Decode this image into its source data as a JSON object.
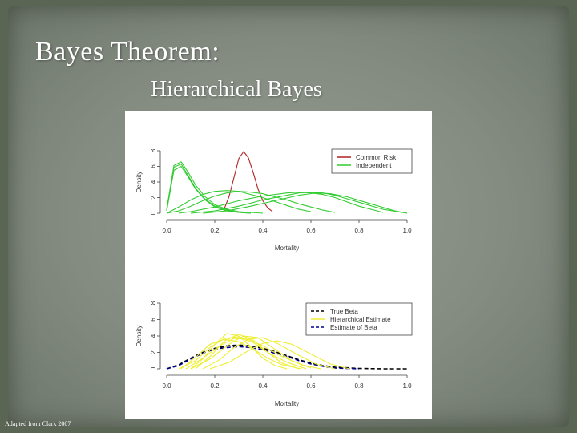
{
  "slide": {
    "title": "Bayes Theorem:",
    "subtitle": "Hierarchical Bayes",
    "credit": "Adapted from Clark 2007"
  },
  "chart_data": [
    {
      "type": "line",
      "xlabel": "Mortality",
      "ylabel": "Density",
      "xlim": [
        0,
        1
      ],
      "ylim": [
        0,
        8
      ],
      "xticks": [
        "0.0",
        "0.2",
        "0.4",
        "0.6",
        "0.8",
        "1.0"
      ],
      "yticks": [
        "0",
        "2",
        "4",
        "6",
        "8"
      ],
      "grid": false,
      "legend": "top-right",
      "legend_entries": [
        {
          "label": "Common Risk",
          "color": "#b22222",
          "dash": "solid"
        },
        {
          "label": "Independent",
          "color": "#33cc33",
          "dash": "solid"
        }
      ],
      "series": [
        {
          "name": "Common Risk",
          "color": "#b22222",
          "x": [
            0.24,
            0.26,
            0.28,
            0.3,
            0.32,
            0.34,
            0.36,
            0.38,
            0.4,
            0.42,
            0.44
          ],
          "y": [
            0.6,
            2.2,
            4.6,
            7.0,
            7.9,
            7.1,
            5.2,
            3.1,
            1.6,
            0.7,
            0.2
          ]
        },
        {
          "name": "Independent",
          "color": "#33cc33",
          "x": [
            0.0,
            0.03,
            0.06,
            0.09,
            0.12,
            0.16,
            0.2,
            0.25,
            0.3,
            0.35,
            0.4
          ],
          "y": [
            0.5,
            6.1,
            6.6,
            5.2,
            3.6,
            2.1,
            1.1,
            0.5,
            0.2,
            0.1,
            0.0
          ]
        },
        {
          "name": "Independent",
          "color": "#33cc33",
          "x": [
            0.0,
            0.03,
            0.06,
            0.09,
            0.12,
            0.16,
            0.2,
            0.25,
            0.3,
            0.35
          ],
          "y": [
            0.4,
            5.9,
            6.3,
            4.8,
            3.2,
            1.8,
            0.9,
            0.4,
            0.1,
            0.0
          ]
        },
        {
          "name": "Independent",
          "color": "#33cc33",
          "x": [
            0.0,
            0.03,
            0.06,
            0.09,
            0.12,
            0.16,
            0.2,
            0.25,
            0.3,
            0.35
          ],
          "y": [
            0.3,
            5.5,
            6.0,
            4.6,
            3.1,
            1.7,
            0.8,
            0.3,
            0.1,
            0.0
          ]
        },
        {
          "name": "Independent",
          "color": "#33cc33",
          "x": [
            0.0,
            0.05,
            0.1,
            0.15,
            0.2,
            0.25,
            0.3,
            0.35,
            0.4,
            0.45,
            0.5,
            0.55,
            0.6
          ],
          "y": [
            0.0,
            0.8,
            1.7,
            2.4,
            2.8,
            2.9,
            2.8,
            2.4,
            2.0,
            1.5,
            1.0,
            0.5,
            0.2
          ]
        },
        {
          "name": "Independent",
          "color": "#33cc33",
          "x": [
            0.0,
            0.05,
            0.1,
            0.15,
            0.2,
            0.25,
            0.3,
            0.35,
            0.4,
            0.45,
            0.5,
            0.55,
            0.6,
            0.65,
            0.7
          ],
          "y": [
            0.0,
            0.3,
            0.9,
            1.6,
            2.2,
            2.6,
            2.8,
            2.7,
            2.5,
            2.1,
            1.7,
            1.2,
            0.8,
            0.4,
            0.1
          ]
        },
        {
          "name": "Independent",
          "color": "#33cc33",
          "x": [
            0.05,
            0.1,
            0.2,
            0.3,
            0.4,
            0.5,
            0.55,
            0.6,
            0.65,
            0.7,
            0.8,
            0.9
          ],
          "y": [
            0.0,
            0.2,
            0.8,
            1.6,
            2.2,
            2.6,
            2.7,
            2.6,
            2.4,
            2.0,
            0.9,
            0.1
          ]
        },
        {
          "name": "Independent",
          "color": "#33cc33",
          "x": [
            0.1,
            0.2,
            0.3,
            0.4,
            0.5,
            0.55,
            0.6,
            0.65,
            0.7,
            0.8,
            0.9,
            1.0
          ],
          "y": [
            0.0,
            0.3,
            0.9,
            1.7,
            2.3,
            2.6,
            2.7,
            2.6,
            2.3,
            1.4,
            0.5,
            0.0
          ]
        },
        {
          "name": "Independent",
          "color": "#33cc33",
          "x": [
            0.15,
            0.25,
            0.35,
            0.45,
            0.55,
            0.62,
            0.68,
            0.75,
            0.85,
            0.95,
            1.0
          ],
          "y": [
            0.0,
            0.3,
            0.9,
            1.6,
            2.3,
            2.6,
            2.5,
            2.1,
            1.2,
            0.3,
            0.0
          ]
        }
      ]
    },
    {
      "type": "line",
      "xlabel": "Mortality",
      "ylabel": "Density",
      "xlim": [
        0,
        1
      ],
      "ylim": [
        0,
        8
      ],
      "xticks": [
        "0.0",
        "0.2",
        "0.4",
        "0.6",
        "0.8",
        "1.0"
      ],
      "yticks": [
        "0",
        "2",
        "4",
        "6",
        "8"
      ],
      "grid": false,
      "legend": "top-right",
      "legend_entries": [
        {
          "label": "True Beta",
          "color": "#000000",
          "dash": "dashed"
        },
        {
          "label": "Hierarchical Estimate",
          "color": "#eeee33",
          "dash": "solid"
        },
        {
          "label": "Estimate of Beta",
          "color": "#00008b",
          "dash": "dashed"
        }
      ],
      "series": [
        {
          "name": "True Beta",
          "color": "#000000",
          "dash": "dashed",
          "x": [
            0.0,
            0.05,
            0.1,
            0.15,
            0.2,
            0.25,
            0.3,
            0.35,
            0.4,
            0.45,
            0.5,
            0.55,
            0.6,
            0.65,
            0.7,
            0.8,
            0.9,
            1.0
          ],
          "y": [
            0.0,
            0.5,
            1.3,
            2.0,
            2.5,
            2.8,
            2.9,
            2.8,
            2.5,
            2.1,
            1.6,
            1.1,
            0.7,
            0.4,
            0.2,
            0.05,
            0.0,
            0.0
          ]
        },
        {
          "name": "Estimate of Beta",
          "color": "#00008b",
          "dash": "dashed",
          "x": [
            0.0,
            0.05,
            0.1,
            0.15,
            0.2,
            0.25,
            0.3,
            0.35,
            0.4,
            0.45,
            0.5,
            0.55,
            0.6,
            0.65,
            0.7,
            0.8
          ],
          "y": [
            0.0,
            0.4,
            1.2,
            1.9,
            2.4,
            2.6,
            2.7,
            2.6,
            2.3,
            1.9,
            1.5,
            1.0,
            0.6,
            0.3,
            0.1,
            0.0
          ]
        },
        {
          "name": "Hierarchical Estimate",
          "color": "#eeee33",
          "x": [
            0.1,
            0.15,
            0.2,
            0.25,
            0.3,
            0.35,
            0.4,
            0.45,
            0.5
          ],
          "y": [
            0.0,
            1.2,
            3.0,
            4.3,
            4.0,
            2.7,
            1.3,
            0.4,
            0.0
          ]
        },
        {
          "name": "Hierarchical Estimate",
          "color": "#eeee33",
          "x": [
            0.12,
            0.18,
            0.24,
            0.3,
            0.36,
            0.42,
            0.48,
            0.55
          ],
          "y": [
            0.0,
            1.5,
            3.4,
            4.2,
            3.5,
            2.0,
            0.7,
            0.0
          ]
        },
        {
          "name": "Hierarchical Estimate",
          "color": "#eeee33",
          "x": [
            0.05,
            0.12,
            0.18,
            0.24,
            0.3,
            0.36,
            0.42,
            0.5,
            0.58
          ],
          "y": [
            0.0,
            1.0,
            2.6,
            3.7,
            3.9,
            3.2,
            2.0,
            0.8,
            0.0
          ]
        },
        {
          "name": "Hierarchical Estimate",
          "color": "#eeee33",
          "x": [
            0.1,
            0.18,
            0.26,
            0.32,
            0.38,
            0.44,
            0.52,
            0.6
          ],
          "y": [
            0.0,
            1.2,
            3.0,
            4.0,
            3.8,
            2.6,
            1.0,
            0.1
          ]
        },
        {
          "name": "Hierarchical Estimate",
          "color": "#eeee33",
          "x": [
            0.15,
            0.22,
            0.28,
            0.34,
            0.4,
            0.46,
            0.54,
            0.62,
            0.7
          ],
          "y": [
            0.0,
            1.1,
            2.6,
            3.6,
            3.8,
            3.1,
            1.8,
            0.6,
            0.0
          ]
        },
        {
          "name": "Hierarchical Estimate",
          "color": "#eeee33",
          "x": [
            0.08,
            0.15,
            0.22,
            0.28,
            0.34,
            0.4,
            0.48,
            0.56,
            0.64
          ],
          "y": [
            0.0,
            1.3,
            2.8,
            3.7,
            3.6,
            2.8,
            1.5,
            0.5,
            0.0
          ]
        },
        {
          "name": "Hierarchical Estimate",
          "color": "#eeee33",
          "x": [
            0.18,
            0.26,
            0.34,
            0.4,
            0.46,
            0.52,
            0.6,
            0.68,
            0.76
          ],
          "y": [
            0.0,
            0.8,
            2.2,
            3.1,
            3.4,
            3.0,
            1.8,
            0.6,
            0.0
          ]
        },
        {
          "name": "Hierarchical Estimate",
          "color": "#eeee33",
          "x": [
            0.06,
            0.12,
            0.18,
            0.24,
            0.3,
            0.36,
            0.42,
            0.48,
            0.56
          ],
          "y": [
            0.0,
            1.4,
            3.0,
            3.6,
            3.3,
            2.4,
            1.3,
            0.5,
            0.0
          ]
        }
      ]
    }
  ]
}
